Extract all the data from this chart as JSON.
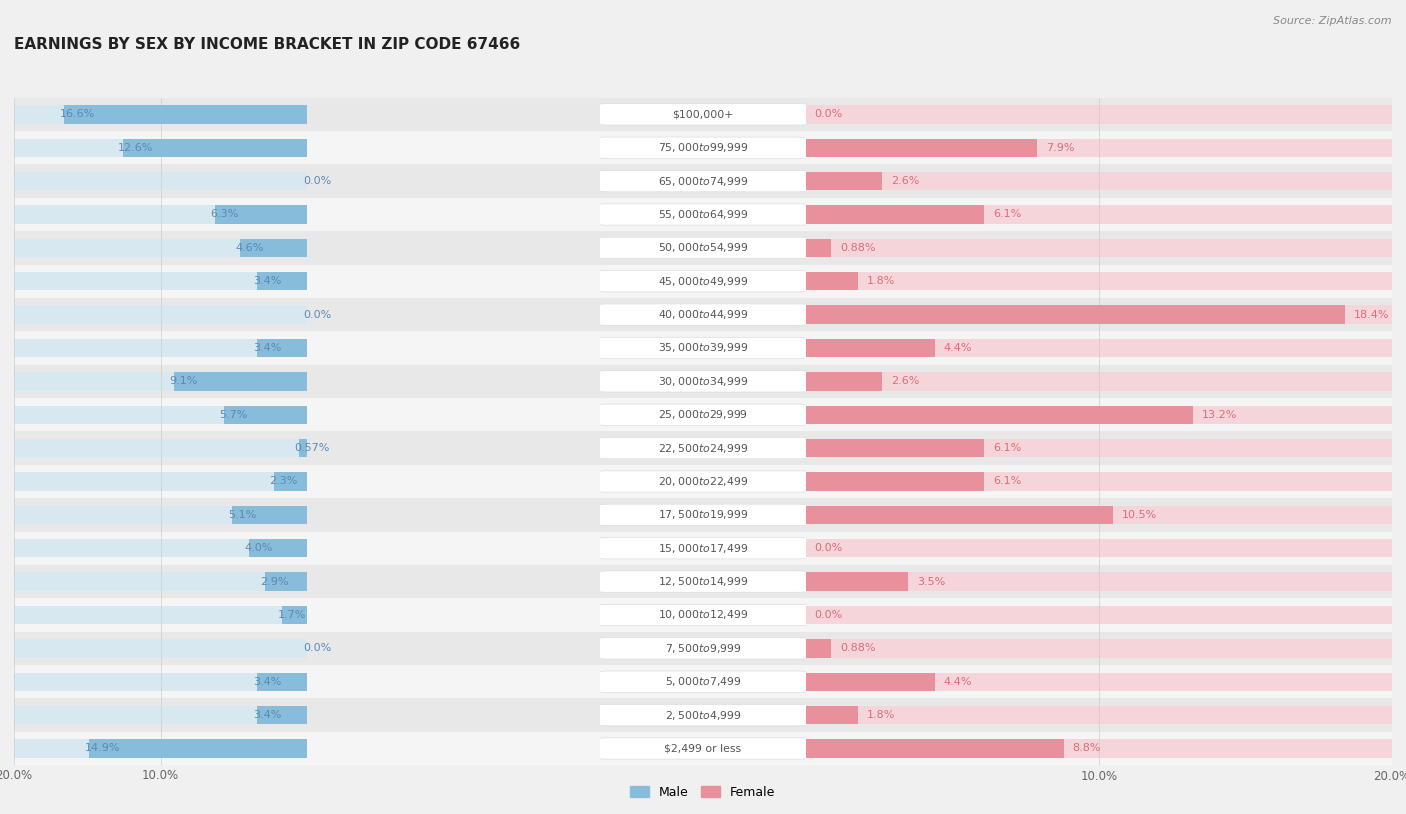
{
  "title": "EARNINGS BY SEX BY INCOME BRACKET IN ZIP CODE 67466",
  "source": "Source: ZipAtlas.com",
  "categories": [
    "$2,499 or less",
    "$2,500 to $4,999",
    "$5,000 to $7,499",
    "$7,500 to $9,999",
    "$10,000 to $12,499",
    "$12,500 to $14,999",
    "$15,000 to $17,499",
    "$17,500 to $19,999",
    "$20,000 to $22,499",
    "$22,500 to $24,999",
    "$25,000 to $29,999",
    "$30,000 to $34,999",
    "$35,000 to $39,999",
    "$40,000 to $44,999",
    "$45,000 to $49,999",
    "$50,000 to $54,999",
    "$55,000 to $64,999",
    "$65,000 to $74,999",
    "$75,000 to $99,999",
    "$100,000+"
  ],
  "male_values": [
    14.9,
    3.4,
    3.4,
    0.0,
    1.7,
    2.9,
    4.0,
    5.1,
    2.3,
    0.57,
    5.7,
    9.1,
    3.4,
    0.0,
    3.4,
    4.6,
    6.3,
    0.0,
    12.6,
    16.6
  ],
  "female_values": [
    8.8,
    1.8,
    4.4,
    0.88,
    0.0,
    3.5,
    0.0,
    10.5,
    6.1,
    6.1,
    13.2,
    2.6,
    4.4,
    18.4,
    1.8,
    0.88,
    6.1,
    2.6,
    7.9,
    0.0
  ],
  "male_color": "#87BCDB",
  "female_color": "#E8919C",
  "male_bar_bg": "#D8E8F0",
  "female_bar_bg": "#F5D5DA",
  "male_label_color": "#5b8ab5",
  "female_label_color": "#d96e78",
  "row_color_light": "#f5f5f5",
  "row_color_dark": "#e8e8e8",
  "label_box_color": "#ffffff",
  "axis_limit": 20.0,
  "legend_male": "Male",
  "legend_female": "Female",
  "bg_color": "#f0f0f0"
}
